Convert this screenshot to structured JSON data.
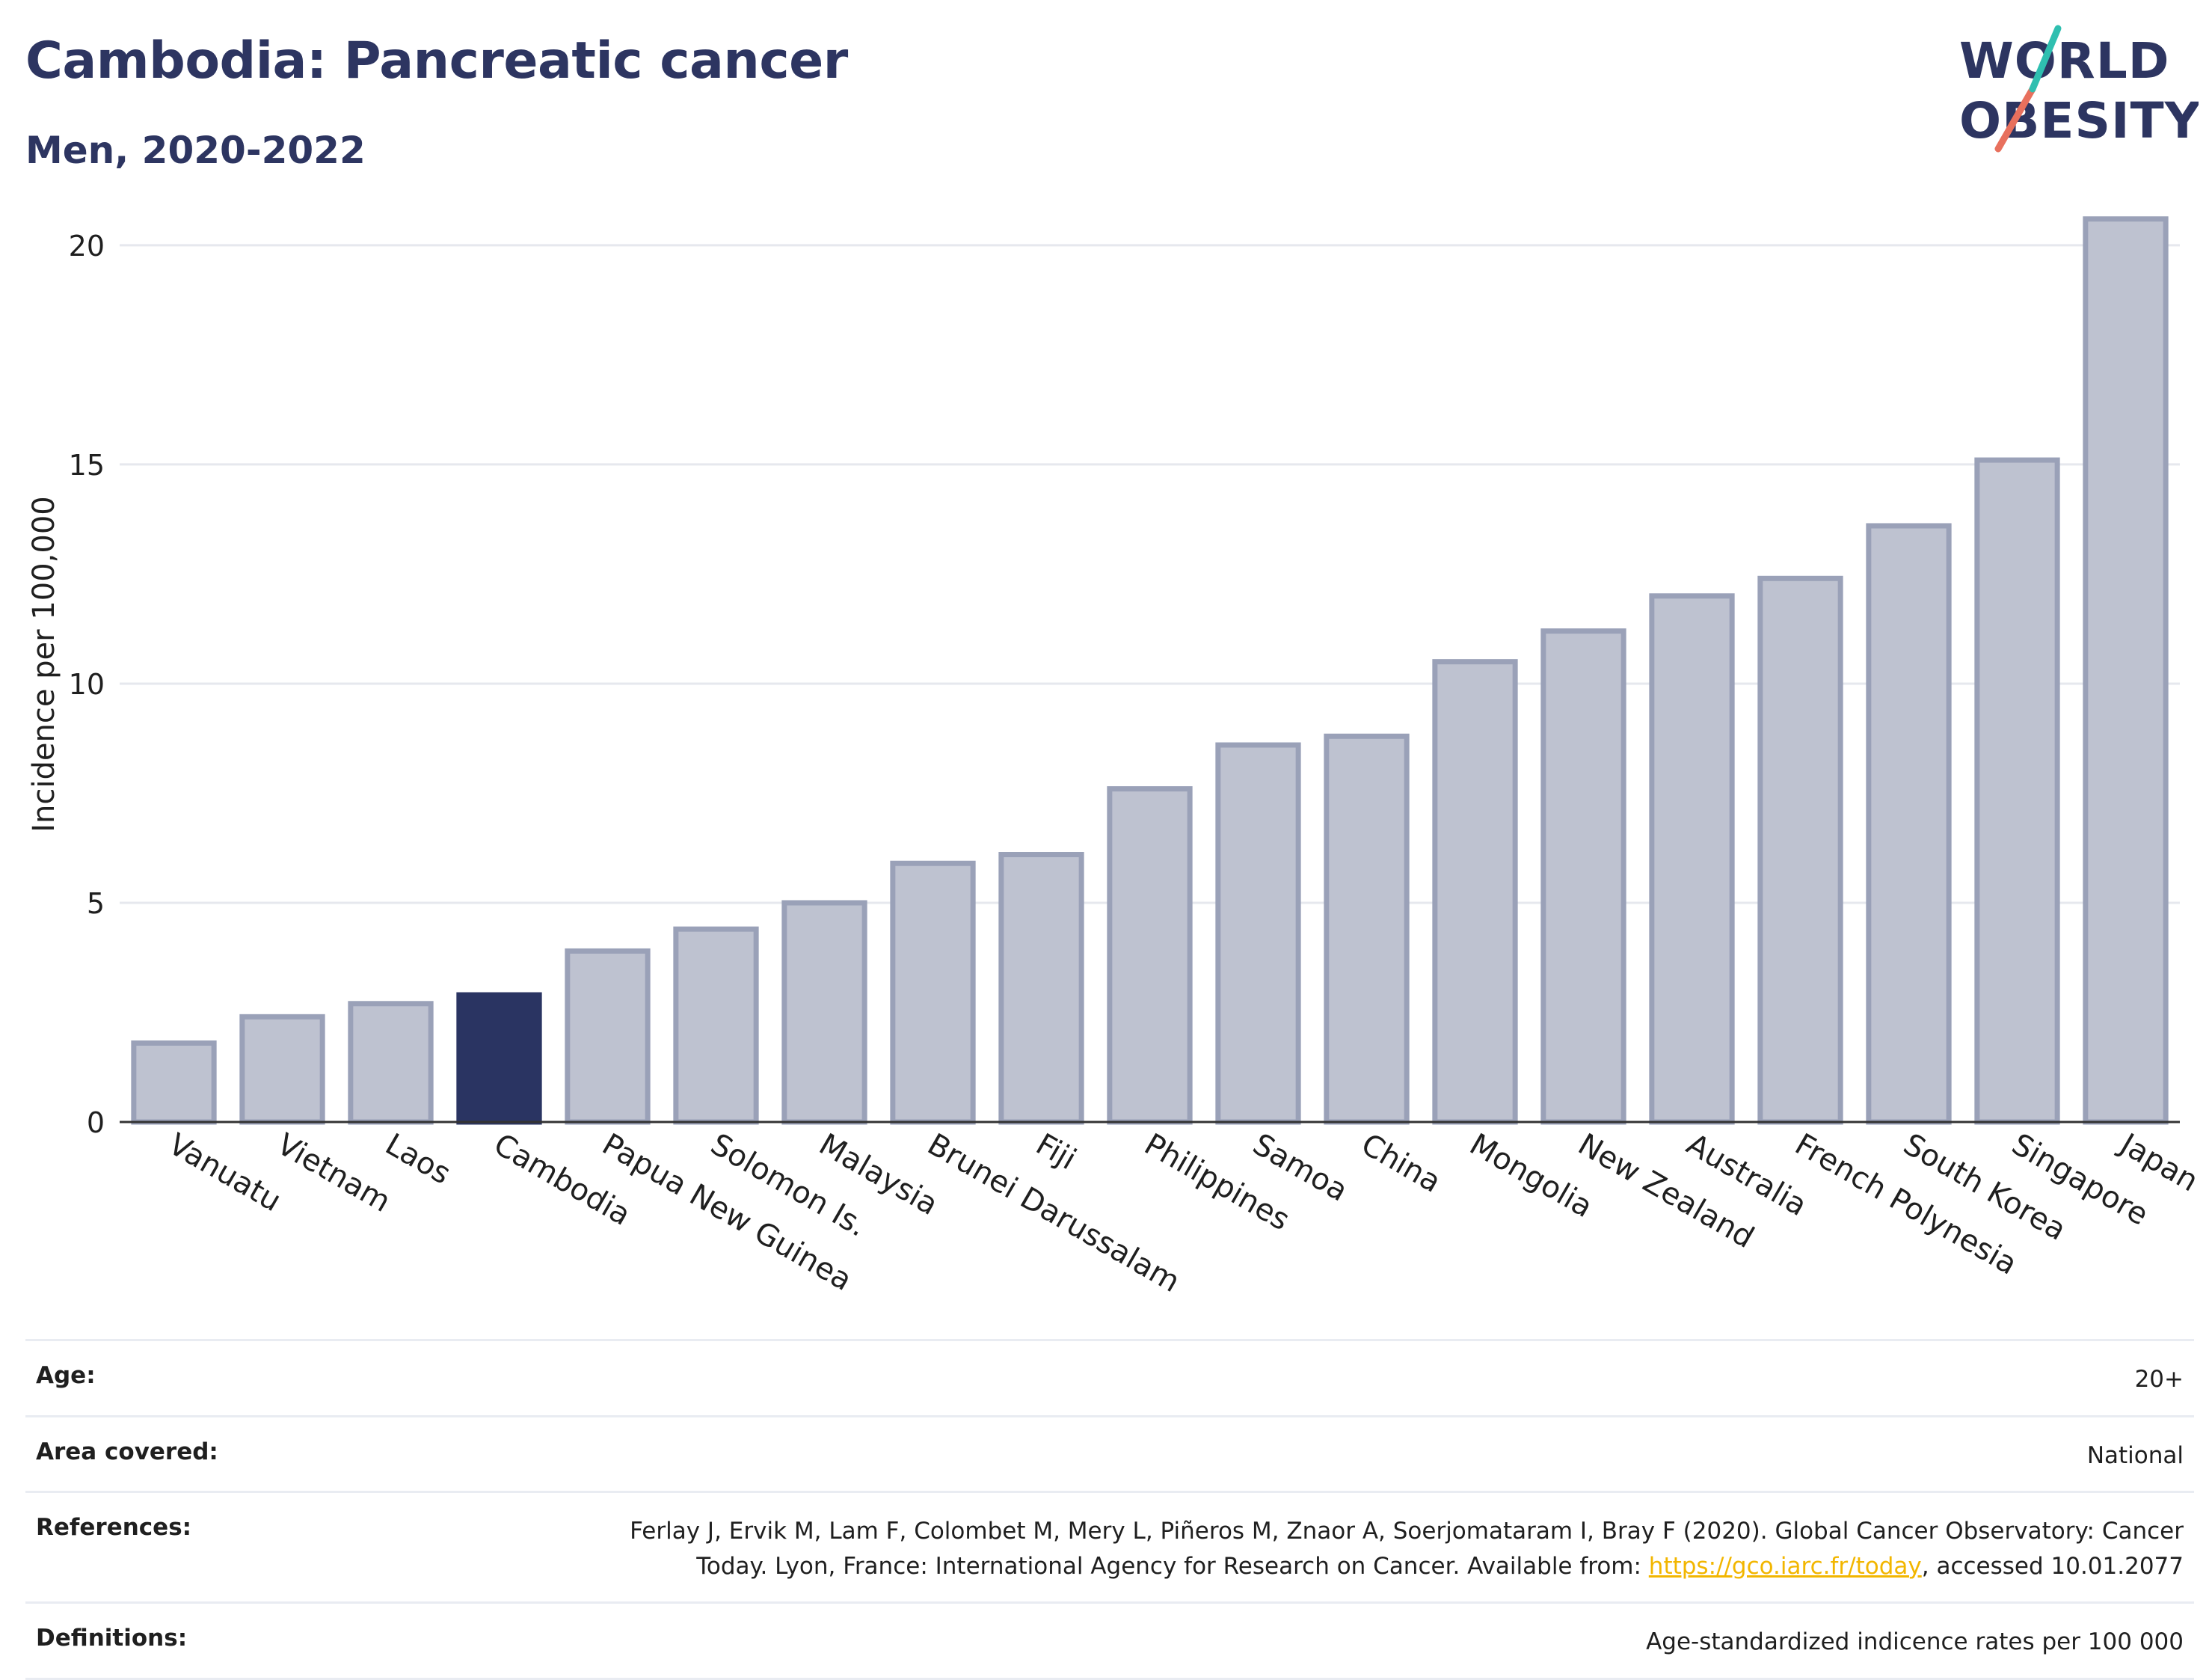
{
  "header": {
    "title": "Cambodia: Pancreatic cancer",
    "subtitle": "Men, 2020-2022"
  },
  "logo": {
    "line1": "WORLD",
    "line2": "OBESITY"
  },
  "colors": {
    "highlight": "#2a3462",
    "bar_fill": "#bec2d0",
    "bar_stroke": "#9aa1b8",
    "grid": "#e6e8ee",
    "axis": "#333333",
    "link": "#f2b600"
  },
  "chart_data": {
    "type": "bar",
    "ylabel": "Incidence per 100,000",
    "xlabel": "",
    "ylim": [
      0,
      21.5
    ],
    "yticks": [
      0,
      5,
      10,
      15,
      20
    ],
    "highlight": "Cambodia",
    "categories": [
      "Vanuatu",
      "Vietnam",
      "Laos",
      "Cambodia",
      "Papua New Guinea",
      "Solomon Is.",
      "Malaysia",
      "Brunei Darussalam",
      "Fiji",
      "Philippines",
      "Samoa",
      "China",
      "Mongolia",
      "New Zealand",
      "Australia",
      "French Polynesia",
      "South Korea",
      "Singapore",
      "Japan"
    ],
    "values": [
      1.8,
      2.4,
      2.7,
      2.9,
      3.9,
      4.4,
      5.0,
      5.9,
      6.1,
      7.6,
      8.6,
      8.8,
      10.5,
      11.2,
      12.0,
      12.4,
      13.6,
      15.1,
      20.6
    ],
    "grid": true
  },
  "meta": {
    "age_label": "Age:",
    "age_value": "20+",
    "area_label": "Area covered:",
    "area_value": "National",
    "references_label": "References:",
    "references_text_1": "Ferlay J, Ervik M, Lam F, Colombet M, Mery L, Piñeros M, Znaor A, Soerjomataram I, Bray F (2020). Global Cancer Observatory: Cancer Today. Lyon, France: International Agency for Research on Cancer. Available from: ",
    "references_link": "https://gco.iarc.fr/today",
    "references_text_2": ", accessed 10.01.2077",
    "definitions_label": "Definitions:",
    "definitions_value": "Age-standardized indicence rates per 100 000"
  }
}
